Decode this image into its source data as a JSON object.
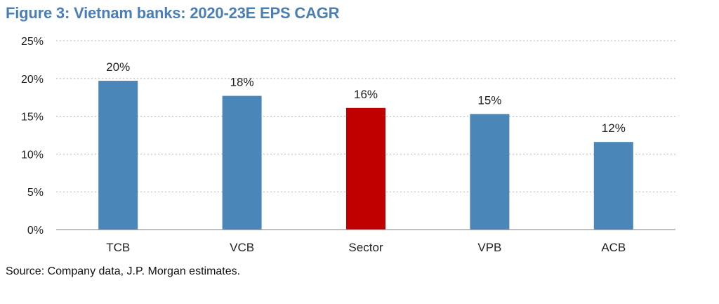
{
  "chart_data": {
    "type": "bar",
    "title": "Figure 3: Vietnam banks: 2020-23E EPS CAGR",
    "categories": [
      "TCB",
      "VCB",
      "Sector",
      "VPB",
      "ACB"
    ],
    "values": [
      19.7,
      17.7,
      16.1,
      15.3,
      11.6
    ],
    "data_labels": [
      "20%",
      "18%",
      "16%",
      "15%",
      "12%"
    ],
    "bar_colors": [
      "#4a86b8",
      "#4a86b8",
      "#c00000",
      "#4a86b8",
      "#4a86b8"
    ],
    "ylim": [
      0,
      25
    ],
    "yticks": [
      0,
      5,
      10,
      15,
      20,
      25
    ],
    "ytick_labels": [
      "0%",
      "5%",
      "10%",
      "15%",
      "20%",
      "25%"
    ],
    "xlabel": "",
    "ylabel": "",
    "grid": true,
    "source": "Source: Company data, J.P. Morgan estimates."
  }
}
